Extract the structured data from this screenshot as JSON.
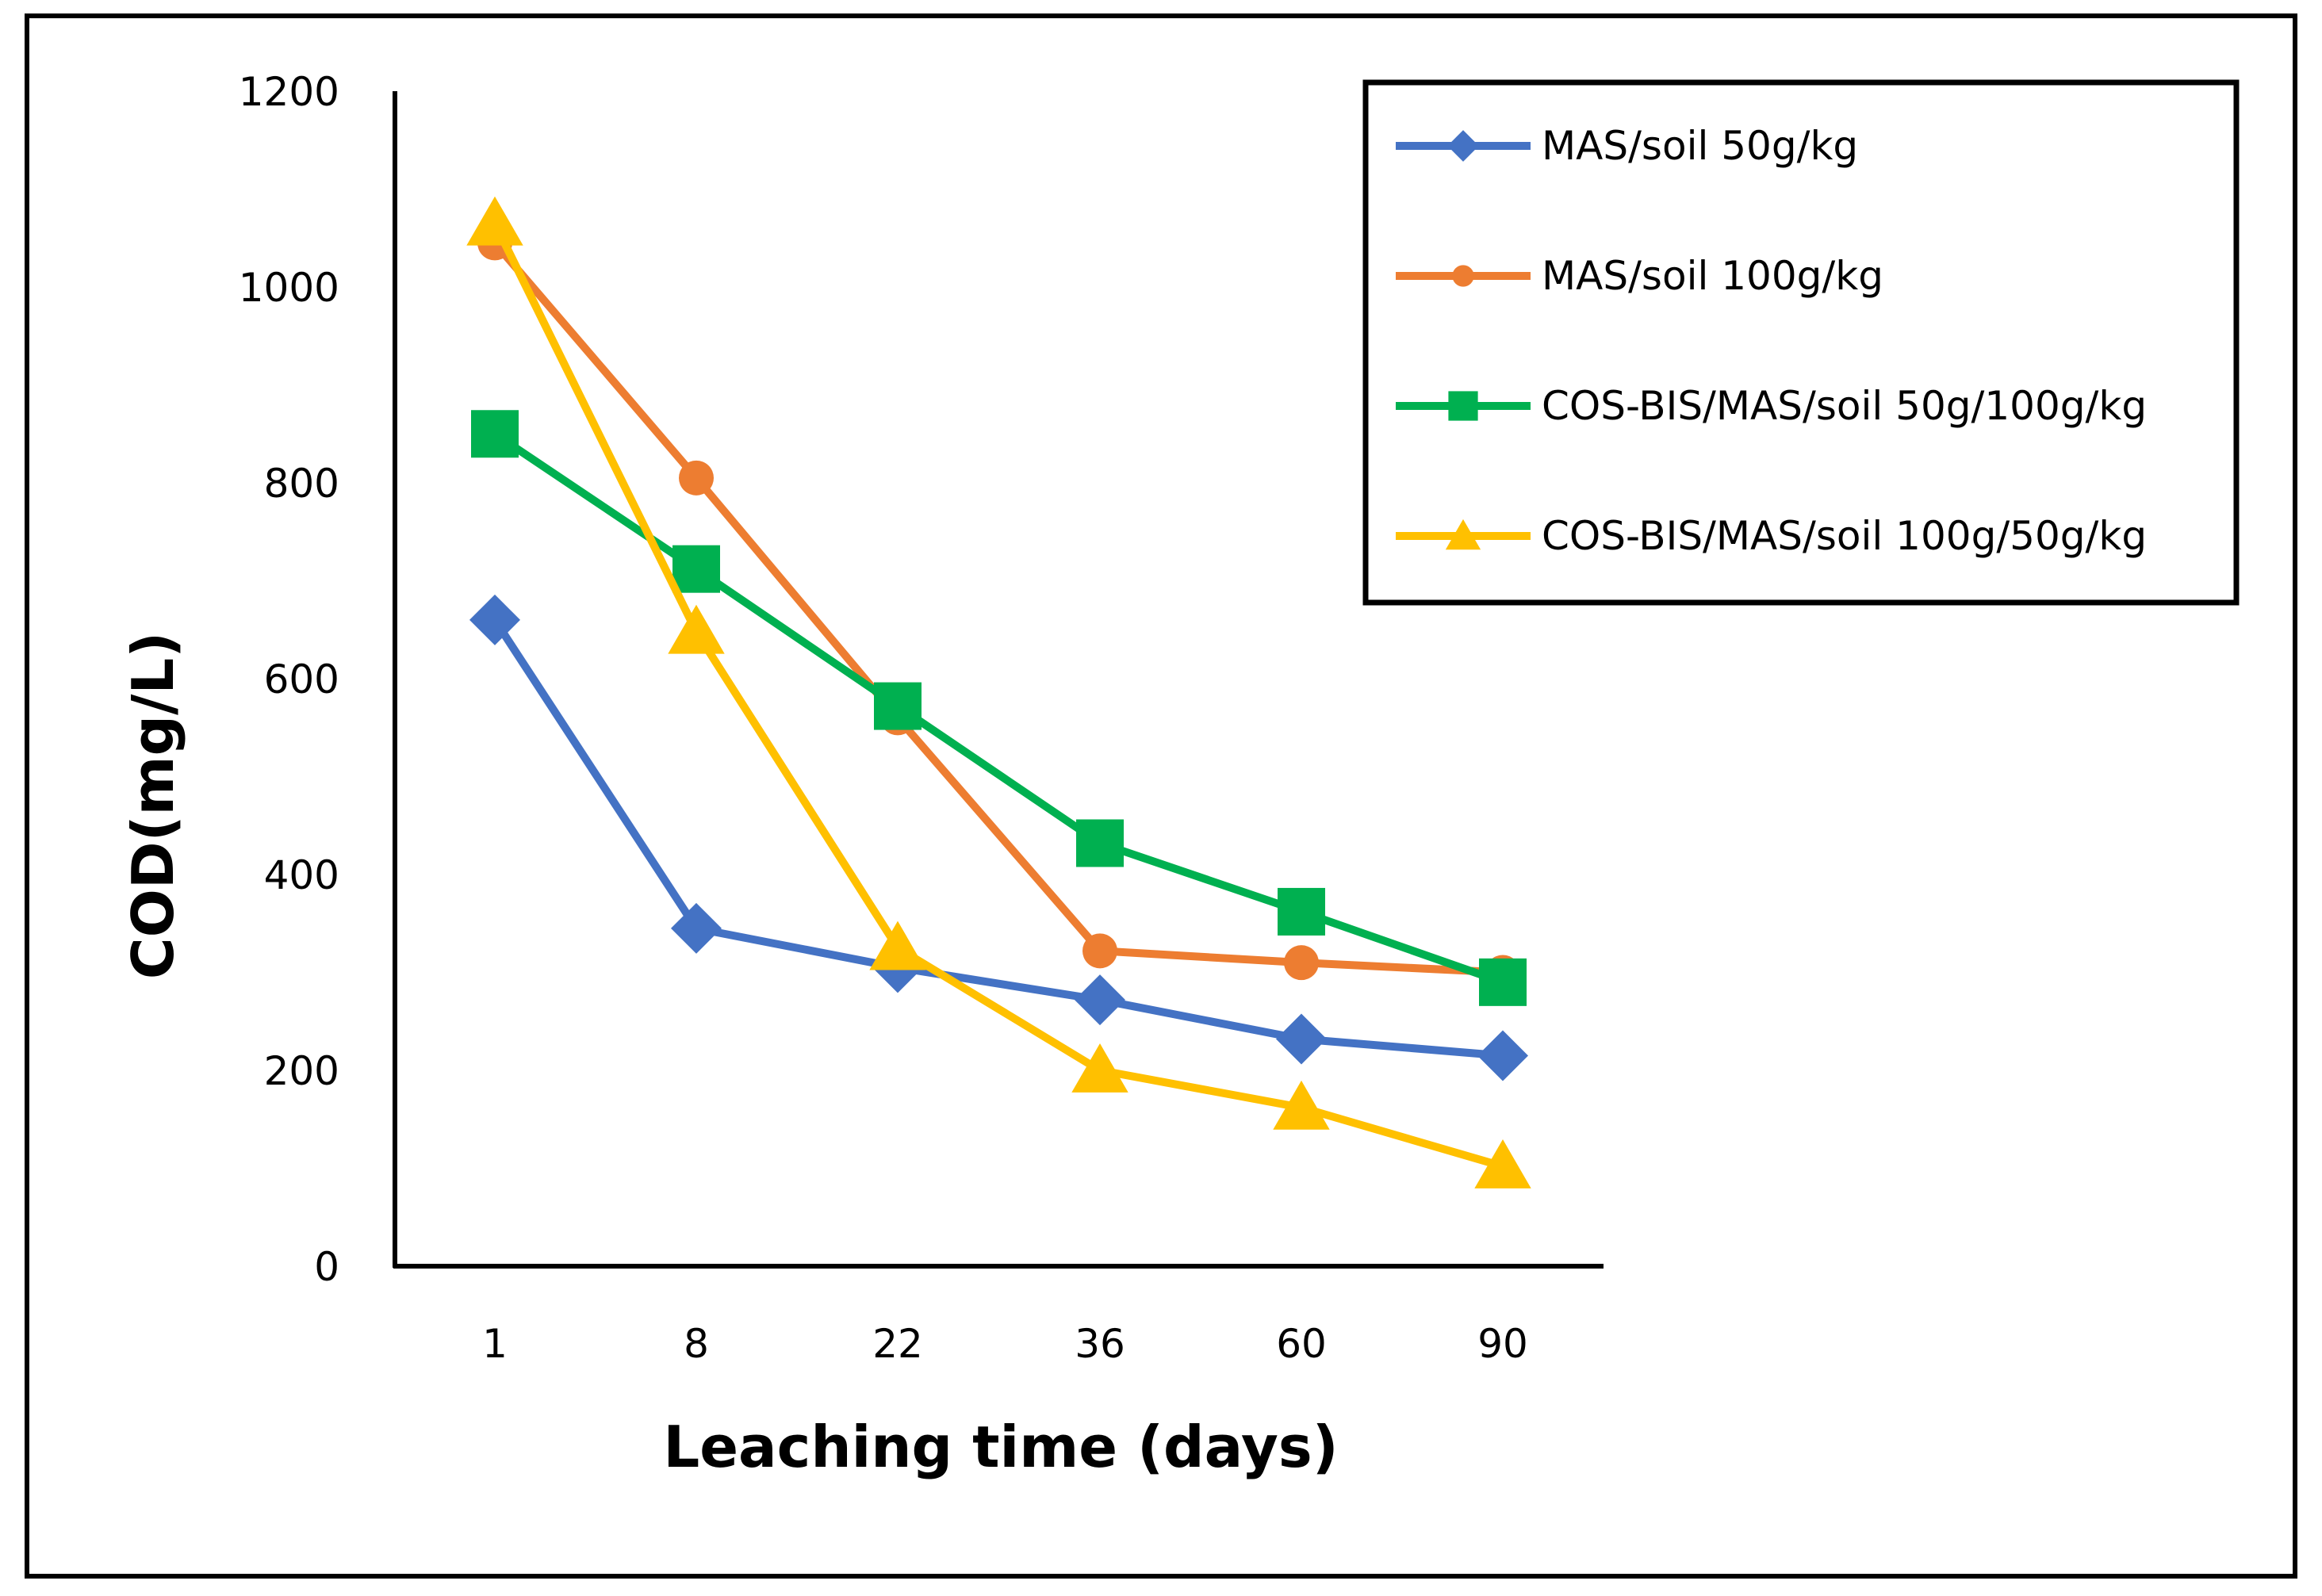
{
  "chart_data": {
    "type": "line",
    "title": "",
    "xlabel": "Leaching time  (days)",
    "ylabel": "COD(mg/L)",
    "categories": [
      "1",
      "8",
      "22",
      "36",
      "60",
      "90"
    ],
    "ylim": [
      0,
      1200
    ],
    "yticks": [
      "0",
      "200",
      "400",
      "600",
      "800",
      "1000",
      "1200"
    ],
    "grid": false,
    "legend_position": "top-right",
    "series": [
      {
        "name": "MAS/soil 50g/kg",
        "marker": "diamond",
        "color": "#4472C4",
        "values": [
          660,
          345,
          305,
          272,
          232,
          215
        ]
      },
      {
        "name": "MAS/soil 100g/kg",
        "marker": "circle",
        "color": "#ED7D31",
        "values": [
          1045,
          805,
          560,
          322,
          310,
          300
        ]
      },
      {
        "name": "COS-BIS/MAS/soil 50g/100g/kg",
        "marker": "square",
        "color": "#00B050",
        "values": [
          850,
          712,
          572,
          432,
          362,
          290
        ]
      },
      {
        "name": "COS-BIS/MAS/soil 100g/50g/kg",
        "marker": "triangle",
        "color": "#FFC000",
        "values": [
          1065,
          648,
          325,
          200,
          162,
          102
        ]
      }
    ]
  }
}
